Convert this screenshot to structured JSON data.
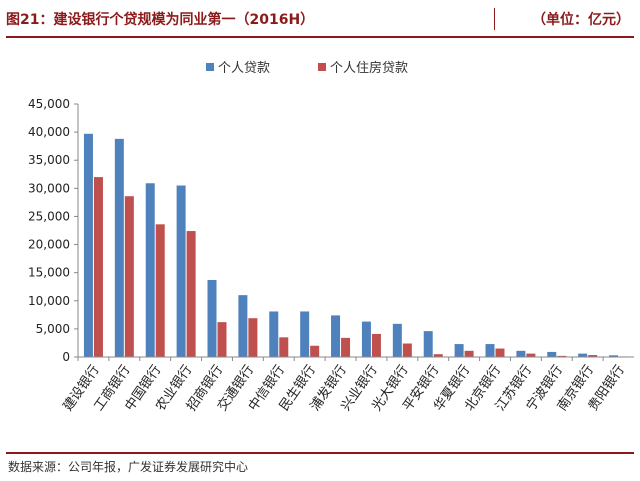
{
  "header": {
    "title": "图21：建设银行个贷规模为同业第一（2016H）",
    "unit": "（单位：亿元）"
  },
  "footer": {
    "source": "数据来源：公司年报，广发证券发展研究中心"
  },
  "colors": {
    "series1": "#4f81bd",
    "series2": "#c0504d",
    "accent": "#8b1a1a"
  },
  "chart_data": {
    "type": "bar",
    "title": "",
    "xlabel": "",
    "ylabel": "",
    "ylim": [
      0,
      45000
    ],
    "yticks": [
      "0",
      "5,000",
      "10,000",
      "15,000",
      "20,000",
      "25,000",
      "30,000",
      "35,000",
      "40,000",
      "45,000"
    ],
    "ytick_values": [
      0,
      5000,
      10000,
      15000,
      20000,
      25000,
      30000,
      35000,
      40000,
      45000
    ],
    "legend_position": "top-center",
    "grid": false,
    "categories": [
      "建设银行",
      "工商银行",
      "中国银行",
      "农业银行",
      "招商银行",
      "交通银行",
      "中信银行",
      "民生银行",
      "浦发银行",
      "兴业银行",
      "光大银行",
      "平安银行",
      "华夏银行",
      "北京银行",
      "江苏银行",
      "宁波银行",
      "南京银行",
      "贵阳银行"
    ],
    "series": [
      {
        "name": "个人贷款",
        "values": [
          39700,
          38800,
          30900,
          30500,
          13700,
          11000,
          8100,
          8100,
          7400,
          6300,
          5900,
          4600,
          2300,
          2300,
          1100,
          900,
          600,
          300
        ]
      },
      {
        "name": "个人住房贷款",
        "values": [
          32000,
          28600,
          23600,
          22400,
          6200,
          6900,
          3500,
          2000,
          3400,
          4100,
          2400,
          500,
          1100,
          1500,
          600,
          200,
          350,
          100
        ]
      }
    ]
  }
}
